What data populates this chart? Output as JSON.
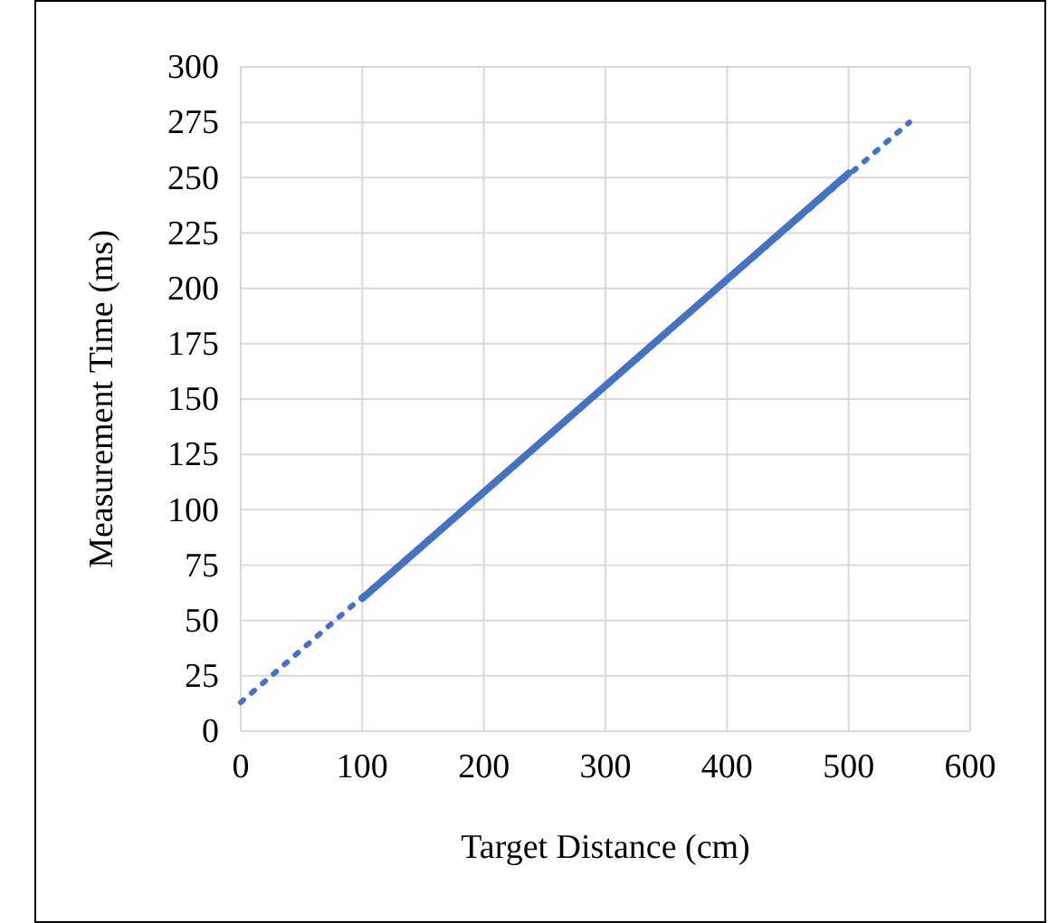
{
  "chart_data": {
    "type": "line",
    "xlabel": "Target Distance (cm)",
    "ylabel": "Measurement Time (ms)",
    "xlim": [
      0,
      600
    ],
    "xticks": [
      0,
      100,
      200,
      300,
      400,
      500,
      600
    ],
    "ylim": [
      0,
      300
    ],
    "yticks": [
      0,
      25,
      50,
      75,
      100,
      125,
      150,
      175,
      200,
      225,
      250,
      275,
      300
    ],
    "grid": true,
    "marker": "none",
    "series": [
      {
        "color": "#4472c4",
        "x": [
          100,
          500
        ],
        "values": [
          60,
          252
        ],
        "line_style": "solid"
      },
      {
        "color": "#4472c4",
        "x": [
          0,
          550
        ],
        "values": [
          13,
          275
        ],
        "line_style": "dotted"
      }
    ]
  }
}
